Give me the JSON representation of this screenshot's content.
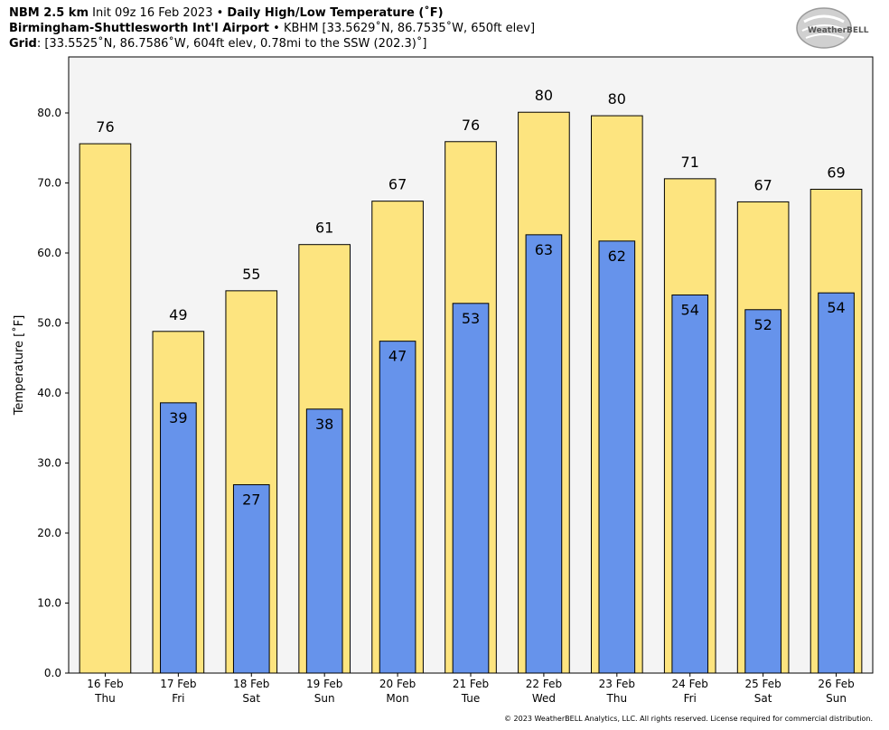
{
  "header": {
    "line1": {
      "model": "NBM 2.5 km",
      "init": "Init 09z 16 Feb 2023",
      "sep": "•",
      "product": "Daily High/Low Temperature (˚F)"
    },
    "line2": {
      "station_name": "Birmingham-Shuttlesworth Int'l Airport",
      "sep": "•",
      "station_info": "KBHM [33.5629˚N, 86.7535˚W, 650ft elev]"
    },
    "line3": {
      "label": "Grid",
      "info": ": [33.5525˚N, 86.7586˚W, 604ft elev, 0.78mi to the SSW (202.3)˚]"
    }
  },
  "logo": {
    "name": "WeatherBELL logo",
    "text": "WeatherBELL"
  },
  "copyright": "© 2023 WeatherBELL Analytics, LLC. All rights reserved. License required for commercial distribution.",
  "colors": {
    "high": "#fde47f",
    "low": "#6693eb",
    "plot_bg": "#f4f4f4"
  },
  "chart_data": {
    "type": "bar",
    "ylabel": "Temperature [˚F]",
    "ylim": [
      0,
      88
    ],
    "yticks": [
      "0.0",
      "10.0",
      "20.0",
      "30.0",
      "40.0",
      "50.0",
      "60.0",
      "70.0",
      "80.0"
    ],
    "categories": [
      {
        "date": "16 Feb",
        "day": "Thu"
      },
      {
        "date": "17 Feb",
        "day": "Fri"
      },
      {
        "date": "18 Feb",
        "day": "Sat"
      },
      {
        "date": "19 Feb",
        "day": "Sun"
      },
      {
        "date": "20 Feb",
        "day": "Mon"
      },
      {
        "date": "21 Feb",
        "day": "Tue"
      },
      {
        "date": "22 Feb",
        "day": "Wed"
      },
      {
        "date": "23 Feb",
        "day": "Thu"
      },
      {
        "date": "24 Feb",
        "day": "Fri"
      },
      {
        "date": "25 Feb",
        "day": "Sat"
      },
      {
        "date": "26 Feb",
        "day": "Sun"
      }
    ],
    "series": [
      {
        "values": [
          75.6,
          48.8,
          54.6,
          61.2,
          67.4,
          75.9,
          80.1,
          79.6,
          70.6,
          67.3,
          69.1
        ],
        "labels": [
          "76",
          "49",
          "55",
          "61",
          "67",
          "76",
          "80",
          "80",
          "71",
          "67",
          "69"
        ]
      },
      {
        "values": [
          null,
          38.6,
          26.9,
          37.7,
          47.4,
          52.8,
          62.6,
          61.7,
          54.0,
          51.9,
          54.3
        ],
        "labels": [
          "",
          "39",
          "27",
          "38",
          "47",
          "53",
          "63",
          "62",
          "54",
          "52",
          "54"
        ]
      }
    ],
    "grid": false,
    "legend": "none"
  }
}
